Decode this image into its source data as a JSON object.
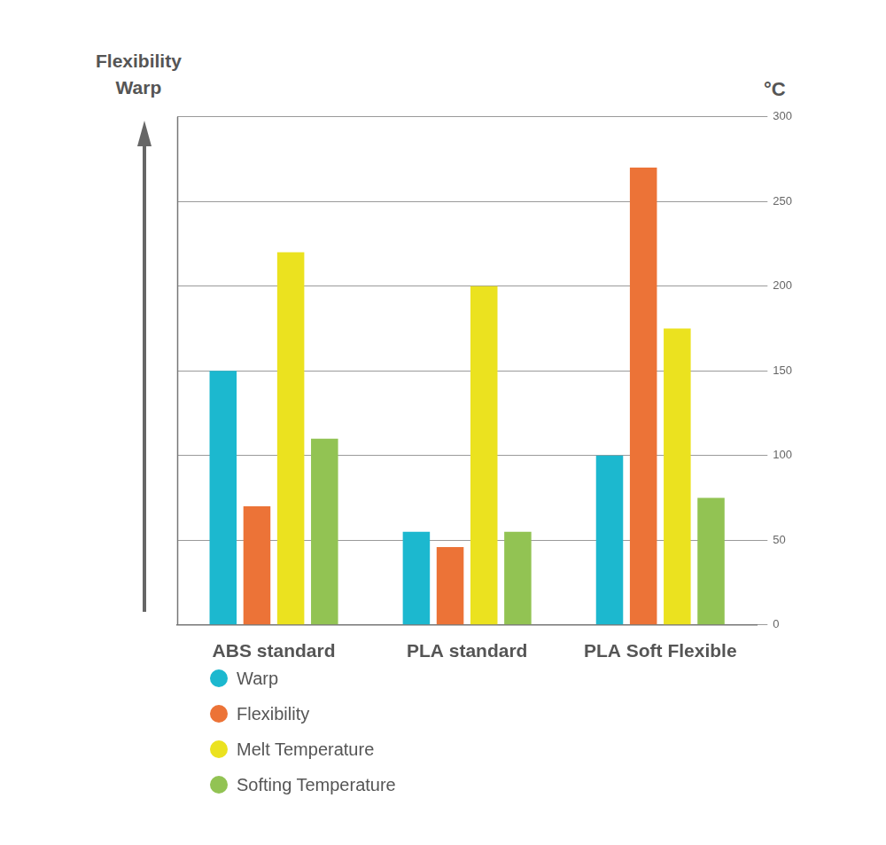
{
  "chart_data": {
    "type": "bar",
    "arrow_label": [
      "Flexibility",
      "Warp"
    ],
    "ylabel": "°C",
    "categories": [
      "ABS standard",
      "PLA standard",
      "PLA Soft Flexible"
    ],
    "series": [
      {
        "name": "Warp",
        "color": "#1cb8cf",
        "values": [
          150,
          55,
          100
        ]
      },
      {
        "name": "Flexibility",
        "color": "#ec7337",
        "values": [
          70,
          46,
          270
        ]
      },
      {
        "name": "Melt Temperature",
        "color": "#ebe21f",
        "values": [
          220,
          200,
          175
        ]
      },
      {
        "name": "Softing Temperature",
        "color": "#92c353",
        "values": [
          110,
          55,
          75
        ]
      }
    ],
    "ylim": [
      0,
      300
    ],
    "yticks": [
      0,
      50,
      100,
      150,
      200,
      250,
      300
    ],
    "grid": true,
    "legend": "bottom-left"
  }
}
